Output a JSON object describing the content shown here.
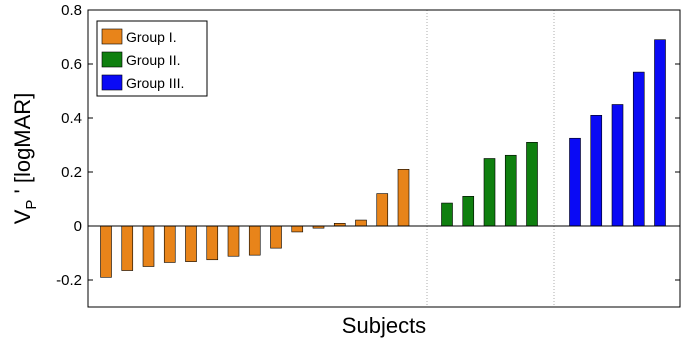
{
  "chart_data": {
    "type": "bar",
    "xlabel": "Subjects",
    "ylabel_main": "V",
    "ylabel_sub": "P",
    "ylabel_rest": " ' [logMAR]",
    "ylim": [
      -0.3,
      0.8
    ],
    "yticks": [
      -0.2,
      0,
      0.2,
      0.4,
      0.6,
      0.8
    ],
    "ytick_labels": [
      "-0.2",
      "0",
      "0.2",
      "0.4",
      "0.6",
      "0.8"
    ],
    "grid": "vertical dotted group separators",
    "legend_position": "top-left",
    "series": [
      {
        "name": "Group I.",
        "color": "#E8841A",
        "values": [
          -0.19,
          -0.165,
          -0.15,
          -0.135,
          -0.132,
          -0.125,
          -0.112,
          -0.108,
          -0.082,
          -0.022,
          -0.008,
          0.01,
          0.022,
          0.12,
          0.21
        ]
      },
      {
        "name": "Group II.",
        "color": "#0F7F0F",
        "values": [
          0.085,
          0.11,
          0.25,
          0.262,
          0.31
        ]
      },
      {
        "name": "Group III.",
        "color": "#0A0AF5",
        "values": [
          0.325,
          0.41,
          0.45,
          0.57,
          0.69
        ]
      }
    ]
  }
}
